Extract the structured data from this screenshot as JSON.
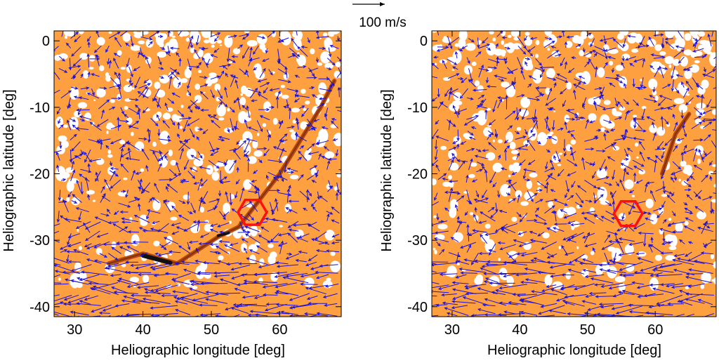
{
  "scale_arrow": {
    "label": "100 m/s"
  },
  "chart_data": [
    {
      "type": "vector-field",
      "xlabel": "Heliographic longitude [deg]",
      "ylabel": "Heliographic latitude [deg]",
      "xlim": [
        27,
        69
      ],
      "ylim": [
        -41.5,
        1.5
      ],
      "xticks": [
        30,
        40,
        50,
        60
      ],
      "yticks": [
        0,
        -10,
        -20,
        -30,
        -40
      ],
      "background_color": "#ffa040",
      "vector_color": "#1a10d8",
      "marker": {
        "shape": "hexagon",
        "color": "#ff1010",
        "center": [
          56,
          -25.8
        ],
        "radius_deg": 2.1
      },
      "features": [
        {
          "name": "filament channel",
          "color": "#b54a12",
          "points": [
            [
              35,
              -33.5
            ],
            [
              40,
              -32
            ],
            [
              45,
              -33.5
            ],
            [
              51,
              -29.5
            ],
            [
              54,
              -28
            ],
            [
              57,
              -24
            ],
            [
              60,
              -20
            ],
            [
              63,
              -15
            ],
            [
              66,
              -10
            ],
            [
              68,
              -6
            ]
          ]
        }
      ],
      "legend": "top-center"
    },
    {
      "type": "vector-field",
      "xlabel": "Heliographic longitude [deg]",
      "ylabel": "Heliographic latitude [deg]",
      "xlim": [
        27,
        69
      ],
      "ylim": [
        -41.5,
        1.5
      ],
      "xticks": [
        30,
        40,
        50,
        60
      ],
      "yticks": [
        0,
        -10,
        -20,
        -30,
        -40
      ],
      "background_color": "#ffa040",
      "vector_color": "#1a10d8",
      "marker": {
        "shape": "hexagon",
        "color": "#ff1010",
        "center": [
          56,
          -26
        ],
        "radius_deg": 2.1
      },
      "features": [
        {
          "name": "filament channel",
          "color": "#b54a12",
          "points": [
            [
              61,
              -20
            ],
            [
              62,
              -17
            ],
            [
              63,
              -14
            ],
            [
              65,
              -11
            ]
          ]
        }
      ]
    }
  ]
}
